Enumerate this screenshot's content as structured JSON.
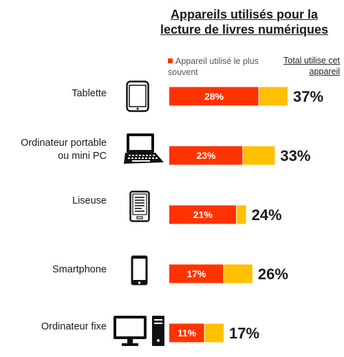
{
  "title_lines": [
    "Appareils utilisés pour la",
    "lecture de livres numériques"
  ],
  "legend": {
    "most_used": "Appareil utilisé le plus souvent",
    "total": "Total utilise cet appareil"
  },
  "colors": {
    "most_used": "#ff3300",
    "total": "#ffc000"
  },
  "chart_data": {
    "type": "bar",
    "orientation": "horizontal",
    "stacked": true,
    "title": "Appareils utilisés pour la lecture de livres numériques",
    "categories": [
      "Tablette",
      "Ordinateur portable ou mini PC",
      "Liseuse",
      "Smartphone",
      "Ordinateur fixe"
    ],
    "series": [
      {
        "name": "Appareil utilisé le plus souvent",
        "values": [
          28,
          23,
          21,
          17,
          11
        ]
      },
      {
        "name": "Total utilise cet appareil",
        "values": [
          37,
          33,
          24,
          26,
          17
        ]
      }
    ],
    "data_labels_inner": [
      "28%",
      "23%",
      "21%",
      "17%",
      "11%"
    ],
    "data_labels_total": [
      "37%",
      "33%",
      "24%",
      "26%",
      "17%"
    ],
    "icons": [
      "tablet-icon",
      "laptop-icon",
      "ereader-icon",
      "smartphone-icon",
      "desktop-computer-icon"
    ],
    "category_labels": [
      "Tablette",
      "Ordinateur portable\nou mini PC",
      "Liseuse",
      "Smartphone",
      "Ordinateur fixe"
    ]
  }
}
